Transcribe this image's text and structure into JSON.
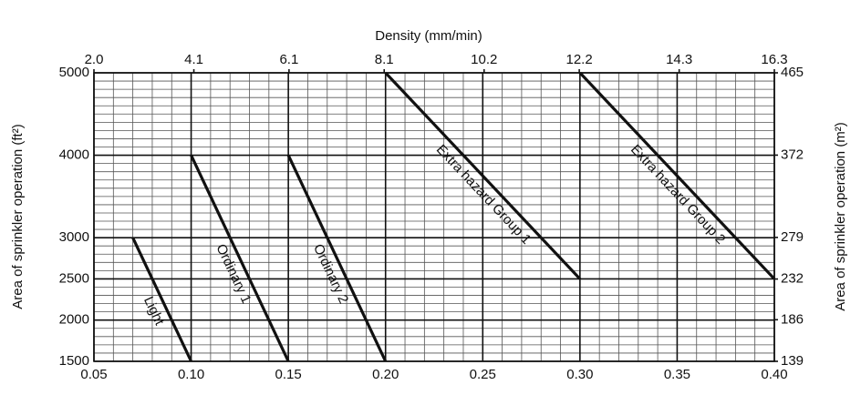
{
  "chart_data": {
    "type": "line",
    "x2label": "Density (mm/min)",
    "ylabel": "Area of sprinkler operation (ft²)",
    "y2label": "Area of sprinkler operation (m²)",
    "xlim": [
      0.05,
      0.4
    ],
    "xticks": [
      0.05,
      {
        "value": 0.1,
        "label": "0.10"
      },
      0.15,
      {
        "value": 0.2,
        "label": "0.20"
      },
      0.25,
      {
        "value": 0.3,
        "label": "0.30"
      },
      0.35,
      {
        "value": 0.4,
        "label": "0.40"
      }
    ],
    "x2lim": [
      2.0,
      16.3
    ],
    "x2ticks": [
      {
        "value": 2,
        "label": "2.0"
      },
      4.1,
      6.1,
      8.1,
      10.2,
      12.2,
      14.3,
      16.3
    ],
    "ylim": [
      1500,
      5000
    ],
    "yticks": [
      1500,
      2000,
      2500,
      3000,
      4000,
      5000
    ],
    "y2lim": [
      139,
      465
    ],
    "y2ticks": [
      139,
      186,
      232,
      279,
      372,
      465
    ],
    "grid": true,
    "series": [
      {
        "name": "Light",
        "color": "#111111",
        "x": [
          0.07,
          0.1
        ],
        "values": [
          3000,
          1500
        ]
      },
      {
        "name": "Ordinary 1",
        "color": "#111111",
        "x": [
          0.1,
          0.15
        ],
        "values": [
          4000,
          1500
        ]
      },
      {
        "name": "Ordinary 2",
        "color": "#111111",
        "x": [
          0.15,
          0.2
        ],
        "values": [
          4000,
          1500
        ]
      },
      {
        "name": "Extra hazard Group 1",
        "color": "#111111",
        "x": [
          0.2,
          0.3
        ],
        "values": [
          5000,
          2500
        ]
      },
      {
        "name": "Extra hazard Group 2",
        "color": "#111111",
        "x": [
          0.3,
          0.4
        ],
        "values": [
          5000,
          2500
        ]
      }
    ]
  }
}
